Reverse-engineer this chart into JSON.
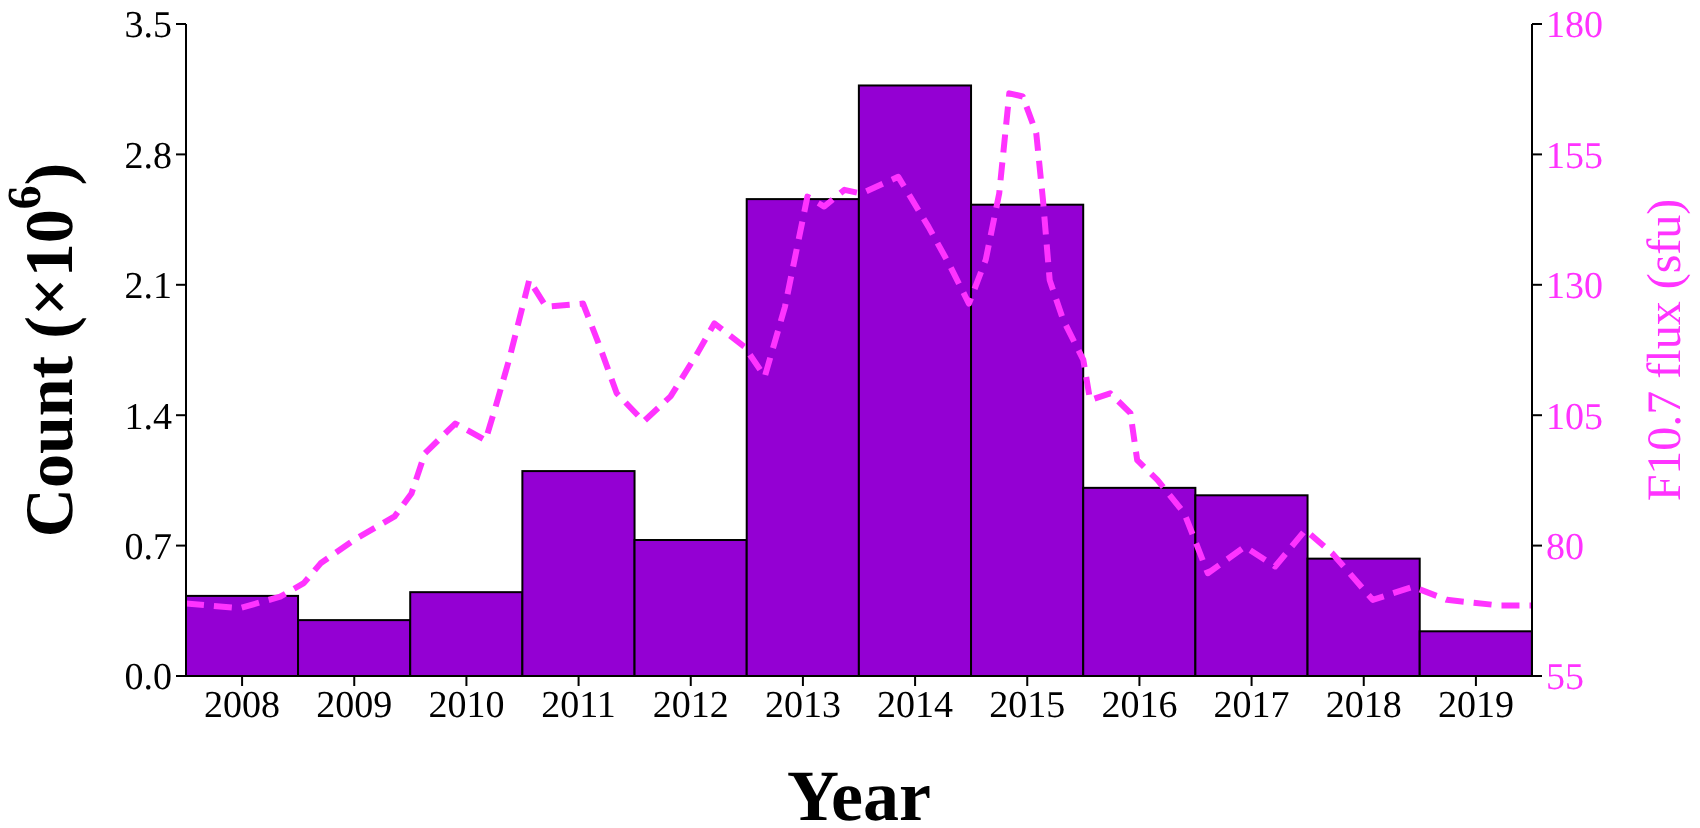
{
  "chart_data": {
    "type": "histogram",
    "xlabel": "Year",
    "ylabel": "Count (×10$^{6}$)",
    "y2label": "F10.7 flux (sfu)",
    "bins": [
      2007.5,
      2008.5,
      2009.5,
      2010.5,
      2011.5,
      2012.5,
      2013.5,
      2014.5,
      2015.5,
      2016.5,
      2017.5,
      2018.5,
      2019.5
    ],
    "xticks": [
      2008,
      2009,
      2010,
      2011,
      2012,
      2013,
      2014,
      2015,
      2016,
      2017,
      2018,
      2019
    ],
    "series": [
      {
        "color": "#9400d3",
        "values": [
          0.43,
          0.3,
          0.45,
          1.1,
          0.73,
          2.56,
          3.17,
          2.53,
          1.01,
          0.97,
          0.63,
          0.24
        ]
      },
      {
        "type": "line",
        "axis": "y2",
        "color": "#ff33ff",
        "line_style": "dashed",
        "marker": "none",
        "x": [
          2007.5,
          2007.98,
          2008.34,
          2008.55,
          2008.7,
          2009.0,
          2009.36,
          2009.51,
          2009.63,
          2009.9,
          2010.17,
          2010.26,
          2010.38,
          2010.56,
          2010.71,
          2011.04,
          2011.19,
          2011.34,
          2011.58,
          2011.82,
          2012.06,
          2012.21,
          2012.48,
          2012.66,
          2012.84,
          2013.04,
          2013.19,
          2013.37,
          2013.52,
          2013.85,
          2014.12,
          2014.3,
          2014.48,
          2014.63,
          2014.75,
          2014.84,
          2014.96,
          2015.08,
          2015.14,
          2015.2,
          2015.32,
          2015.5,
          2015.56,
          2015.74,
          2015.92,
          2015.98,
          2016.16,
          2016.4,
          2016.61,
          2016.94,
          2017.21,
          2017.48,
          2017.72,
          2018.08,
          2018.44,
          2018.74,
          2019.22,
          2019.5
        ],
        "values": [
          68.9,
          68.0,
          70.2,
          72.8,
          76.6,
          81.1,
          85.6,
          90.0,
          97.7,
          103.4,
          100.2,
          106.6,
          115.6,
          130.9,
          125.8,
          126.4,
          118.1,
          109.2,
          103.8,
          108.6,
          116.9,
          122.6,
          118.1,
          112.4,
          125.8,
          146.9,
          145.0,
          148.2,
          147.5,
          150.7,
          141.1,
          134.1,
          126.4,
          134.8,
          147.5,
          166.7,
          166.1,
          159.1,
          146.3,
          130.9,
          123.3,
          115.6,
          107.9,
          109.2,
          105.4,
          96.4,
          92.6,
          86.2,
          74.7,
          79.8,
          76.0,
          83.0,
          78.5,
          69.6,
          72.1,
          69.6,
          68.5,
          68.5
        ]
      }
    ],
    "xlim": [
      2007.5,
      2019.5
    ],
    "ylim": [
      0,
      3.5
    ],
    "yticks": [
      {
        "value": 0,
        "label": "0.0"
      },
      0.7,
      1.4,
      2.1,
      2.8,
      3.5
    ],
    "y2lim": [
      55,
      180
    ],
    "y2ticks": [
      55,
      80,
      105,
      130,
      155,
      180
    ],
    "grid": false,
    "legend": false
  }
}
